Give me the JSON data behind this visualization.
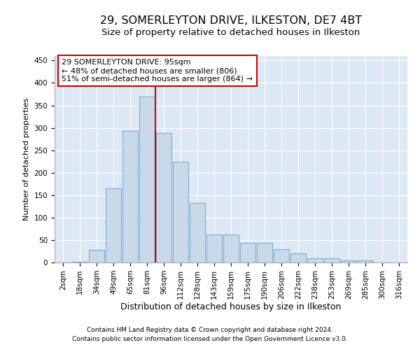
{
  "title1": "29, SOMERLEYTON DRIVE, ILKESTON, DE7 4BT",
  "title2": "Size of property relative to detached houses in Ilkeston",
  "xlabel": "Distribution of detached houses by size in Ilkeston",
  "ylabel": "Number of detached properties",
  "footnote1": "Contains HM Land Registry data © Crown copyright and database right 2024.",
  "footnote2": "Contains public sector information licensed under the Open Government Licence v3.0.",
  "categories": [
    "2sqm",
    "18sqm",
    "34sqm",
    "49sqm",
    "65sqm",
    "81sqm",
    "96sqm",
    "112sqm",
    "128sqm",
    "143sqm",
    "159sqm",
    "175sqm",
    "190sqm",
    "206sqm",
    "222sqm",
    "238sqm",
    "253sqm",
    "269sqm",
    "285sqm",
    "300sqm",
    "316sqm"
  ],
  "values": [
    0,
    2,
    28,
    165,
    293,
    370,
    288,
    225,
    133,
    62,
    62,
    43,
    43,
    29,
    21,
    9,
    10,
    4,
    4,
    0,
    0
  ],
  "bar_color": "#c9d9e8",
  "bar_edge_color": "#7bafd4",
  "vline_color": "#cc0000",
  "vline_pos": 5.5,
  "annotation_title": "29 SOMERLEYTON DRIVE: 95sqm",
  "annotation_line1": "← 48% of detached houses are smaller (806)",
  "annotation_line2": "51% of semi-detached houses are larger (864) →",
  "annotation_box_facecolor": "#ffffff",
  "annotation_box_edgecolor": "#cc0000",
  "ylim": [
    0,
    460
  ],
  "yticks": [
    0,
    50,
    100,
    150,
    200,
    250,
    300,
    350,
    400,
    450
  ],
  "background_color": "#dce8f4",
  "title1_fontsize": 11.5,
  "title2_fontsize": 9.5,
  "ylabel_fontsize": 8,
  "xlabel_fontsize": 9,
  "tick_fontsize": 7.5,
  "annotation_fontsize": 8,
  "footnote_fontsize": 6.5
}
